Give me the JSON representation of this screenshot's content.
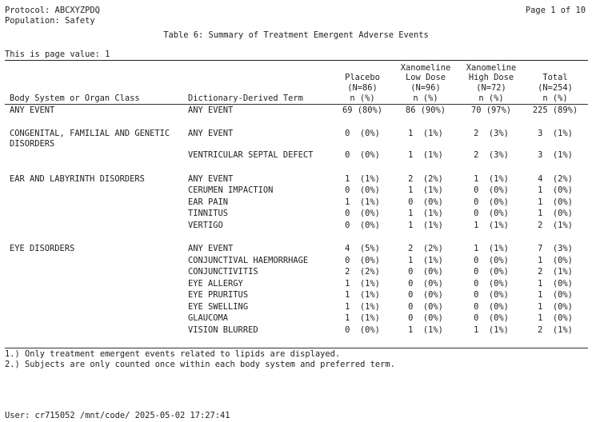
{
  "header": {
    "protocol": "Protocol: ABCXYZPDQ",
    "population": "Population: Safety",
    "page": "Page 1 of 10",
    "title": "Table 6: Summary of Treatment Emergent Adverse Events",
    "page_value": "This is page value: 1"
  },
  "columns": {
    "soc": "Body System or Organ Class",
    "term": "Dictionary-Derived Term",
    "placebo": [
      "Placebo",
      "(N=86)",
      "n (%)"
    ],
    "low": [
      "Xanomeline",
      "Low Dose",
      "(N=96)",
      "n (%)"
    ],
    "high": [
      "Xanomeline",
      "High Dose",
      "(N=72)",
      "n (%)"
    ],
    "total": [
      "Total",
      "(N=254)",
      "n (%)"
    ]
  },
  "rows": [
    {
      "soc": "ANY EVENT",
      "term": "ANY EVENT",
      "p": "69 (80%)",
      "l": "86 (90%)",
      "h": "70 (97%)",
      "t": "225 (89%)"
    },
    {
      "soc": "CONGENITAL, FAMILIAL AND GENETIC",
      "soc2": "DISORDERS",
      "term": "ANY EVENT",
      "p": "0  (0%)",
      "l": "1  (1%)",
      "h": "2  (3%)",
      "t": "3  (1%)"
    },
    {
      "soc": "",
      "term": "VENTRICULAR SEPTAL DEFECT",
      "p": "0  (0%)",
      "l": "1  (1%)",
      "h": "2  (3%)",
      "t": "3  (1%)"
    },
    {
      "soc": "EAR AND LABYRINTH DISORDERS",
      "term": "ANY EVENT",
      "p": "1  (1%)",
      "l": "2  (2%)",
      "h": "1  (1%)",
      "t": "4  (2%)"
    },
    {
      "soc": "",
      "term": "CERUMEN IMPACTION",
      "p": "0  (0%)",
      "l": "1  (1%)",
      "h": "0  (0%)",
      "t": "1  (0%)"
    },
    {
      "soc": "",
      "term": "EAR PAIN",
      "p": "1  (1%)",
      "l": "0  (0%)",
      "h": "0  (0%)",
      "t": "1  (0%)"
    },
    {
      "soc": "",
      "term": "TINNITUS",
      "p": "0  (0%)",
      "l": "1  (1%)",
      "h": "0  (0%)",
      "t": "1  (0%)"
    },
    {
      "soc": "",
      "term": "VERTIGO",
      "p": "0  (0%)",
      "l": "1  (1%)",
      "h": "1  (1%)",
      "t": "2  (1%)"
    },
    {
      "soc": "EYE DISORDERS",
      "term": "ANY EVENT",
      "p": "4  (5%)",
      "l": "2  (2%)",
      "h": "1  (1%)",
      "t": "7  (3%)"
    },
    {
      "soc": "",
      "term": "CONJUNCTIVAL HAEMORRHAGE",
      "p": "0  (0%)",
      "l": "1  (1%)",
      "h": "0  (0%)",
      "t": "1  (0%)"
    },
    {
      "soc": "",
      "term": "CONJUNCTIVITIS",
      "p": "2  (2%)",
      "l": "0  (0%)",
      "h": "0  (0%)",
      "t": "2  (1%)"
    },
    {
      "soc": "",
      "term": "EYE ALLERGY",
      "p": "1  (1%)",
      "l": "0  (0%)",
      "h": "0  (0%)",
      "t": "1  (0%)"
    },
    {
      "soc": "",
      "term": "EYE PRURITUS",
      "p": "1  (1%)",
      "l": "0  (0%)",
      "h": "0  (0%)",
      "t": "1  (0%)"
    },
    {
      "soc": "",
      "term": "EYE SWELLING",
      "p": "1  (1%)",
      "l": "0  (0%)",
      "h": "0  (0%)",
      "t": "1  (0%)"
    },
    {
      "soc": "",
      "term": "GLAUCOMA",
      "p": "1  (1%)",
      "l": "0  (0%)",
      "h": "0  (0%)",
      "t": "1  (0%)"
    },
    {
      "soc": "",
      "term": "VISION BLURRED",
      "p": "0  (0%)",
      "l": "1  (1%)",
      "h": "1  (1%)",
      "t": "2  (1%)"
    }
  ],
  "footnotes": [
    "1.) Only treatment emergent events related to lipids are displayed.",
    "2.) Subjects are only counted once within each body system and preferred term."
  ],
  "footer": "User: cr715052 /mnt/code/ 2025-05-02 17:27:41"
}
